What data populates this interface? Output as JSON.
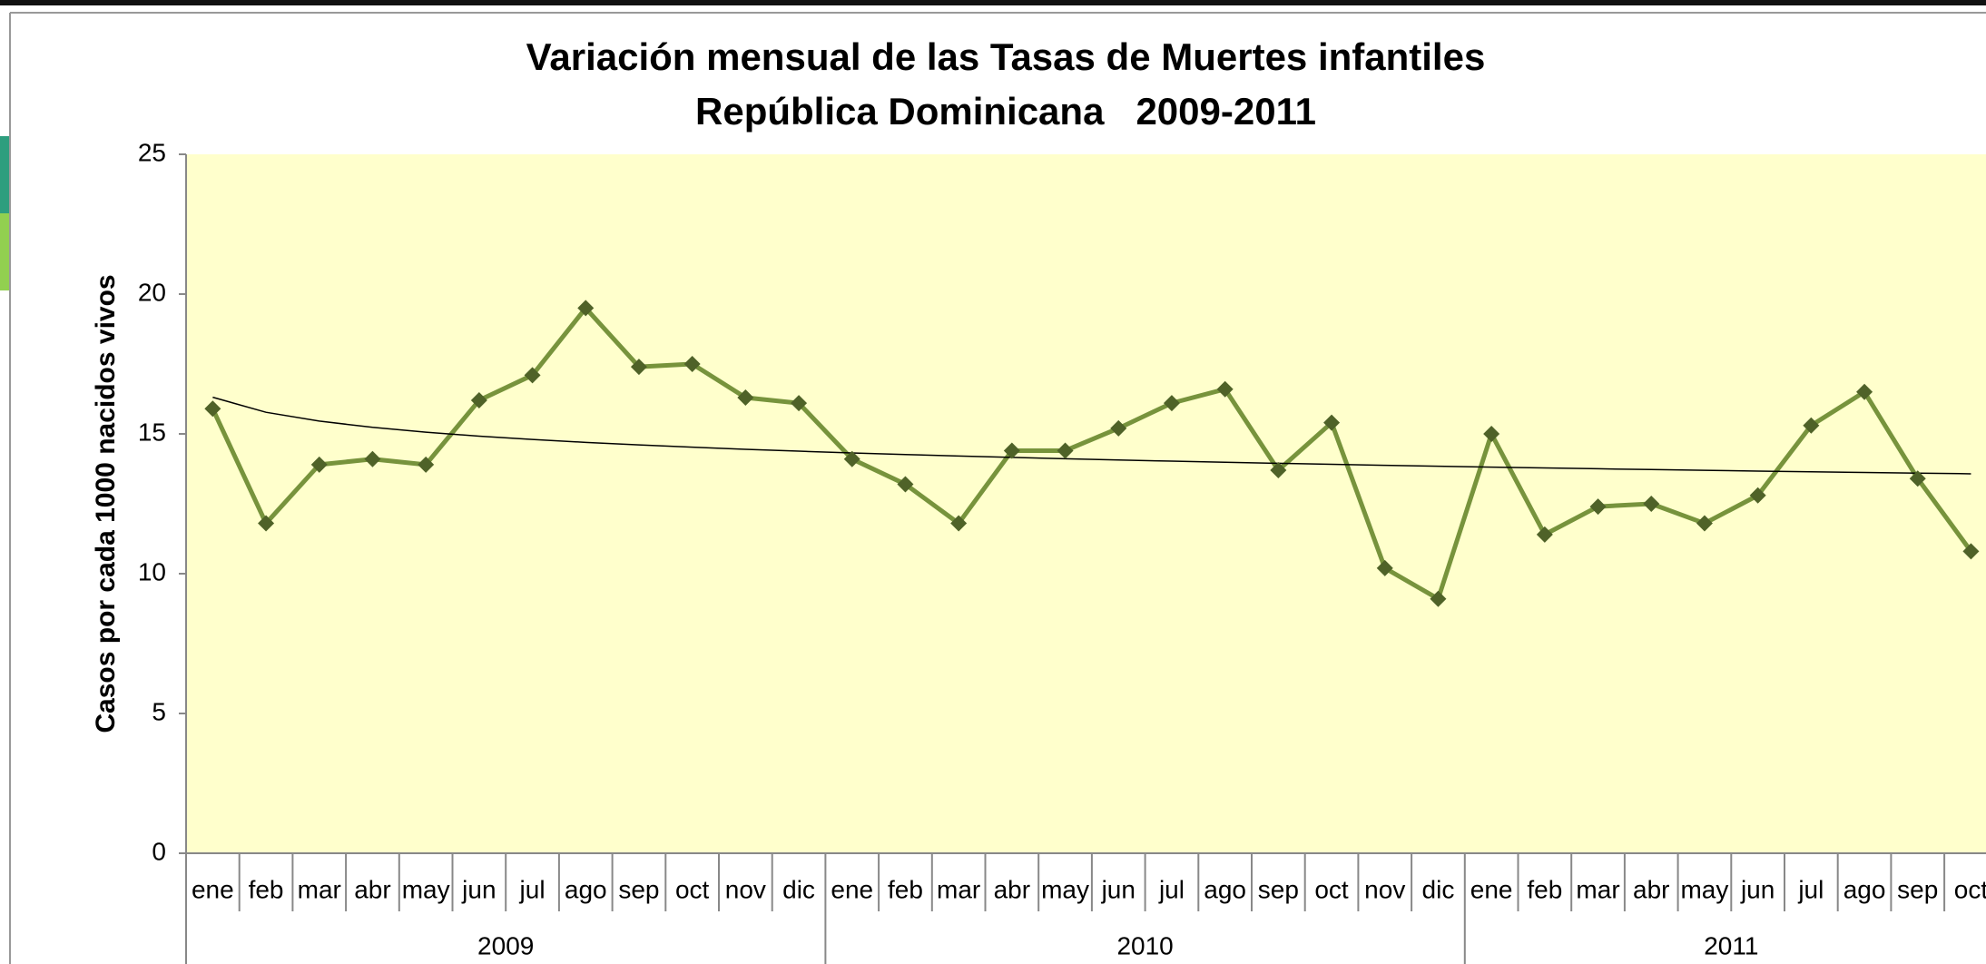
{
  "chart_data": {
    "type": "line",
    "title": [
      "Variación mensual de las Tasas de Muertes infantiles",
      "República Dominicana   2009-2011"
    ],
    "y_label": "Casos por cada 1000 nacidos vivos",
    "categories": [
      "ene",
      "feb",
      "mar",
      "abr",
      "may",
      "jun",
      "jul",
      "ago",
      "sep",
      "oct",
      "nov",
      "dic",
      "ene",
      "feb",
      "mar",
      "abr",
      "may",
      "jun",
      "jul",
      "ago",
      "sep",
      "oct",
      "nov",
      "dic",
      "ene",
      "feb",
      "mar",
      "abr",
      "may",
      "jun",
      "jul",
      "ago",
      "sep",
      "oct"
    ],
    "groups": [
      "2009",
      "2010",
      "2011"
    ],
    "series": [
      {
        "color": "#77933c",
        "marker_color": "#4f6228",
        "values": [
          15.9,
          11.8,
          13.9,
          14.1,
          13.9,
          16.2,
          17.1,
          19.5,
          17.4,
          17.5,
          16.3,
          16.1,
          14.1,
          13.2,
          11.8,
          14.4,
          14.4,
          15.2,
          16.1,
          16.6,
          13.7,
          15.4,
          10.2,
          9.1,
          15.0,
          11.4,
          12.4,
          12.5,
          11.8,
          12.8,
          15.3,
          16.5,
          13.4,
          10.8
        ]
      }
    ],
    "trendline": "logarithmic",
    "ylim": [
      0,
      25
    ],
    "yticks": [
      0,
      5,
      10,
      15,
      20,
      25
    ],
    "plot_background": "#ffffcc"
  }
}
